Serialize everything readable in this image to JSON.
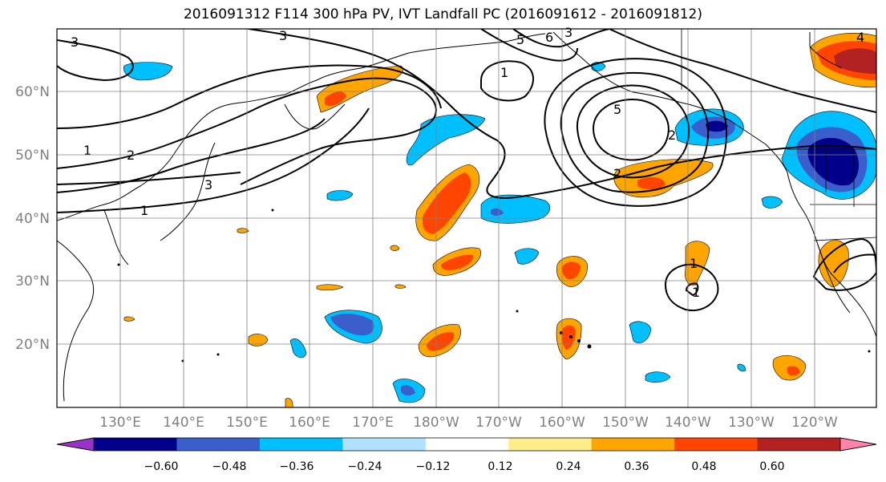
{
  "title": "2016091312 F114 300 hPa PV, IVT Landfall PC (2016091612 - 2016091812)",
  "map": {
    "lon_labels": [
      "130°E",
      "140°E",
      "150°E",
      "160°E",
      "170°E",
      "180°W",
      "170°W",
      "160°W",
      "150°W",
      "140°W",
      "130°W",
      "120°W"
    ],
    "lat_labels": [
      "60°N",
      "50°N",
      "40°N",
      "30°N",
      "20°N"
    ],
    "contour_labels": [
      "3",
      "3",
      "4",
      "5",
      "6",
      "3",
      "1",
      "5",
      "2",
      "1",
      "2",
      "3",
      "1",
      "2",
      "1",
      "1"
    ]
  },
  "colorbar": {
    "ticks": [
      "−0.60",
      "−0.48",
      "−0.36",
      "−0.24",
      "−0.12",
      "0.12",
      "0.24",
      "0.36",
      "0.48",
      "0.60"
    ],
    "colors": [
      "#9932cc",
      "#00008b",
      "#3a5fcd",
      "#00bfff",
      "#b0e2ff",
      "#ffffff",
      "#ffec8b",
      "#ffa500",
      "#ff4500",
      "#b22222",
      "#ff82ab"
    ]
  }
}
